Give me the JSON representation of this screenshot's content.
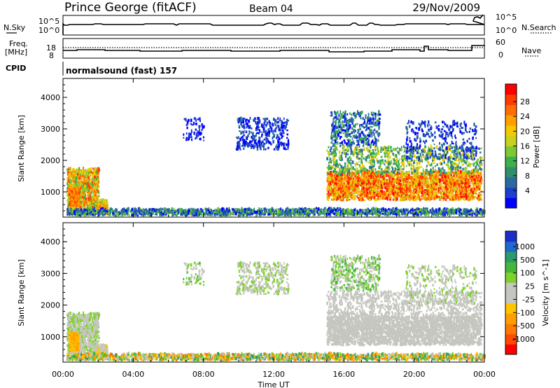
{
  "header": {
    "station": "Prince George (fitACF)",
    "beam": "Beam 04",
    "date": "29/Nov/2009"
  },
  "panel_nsky": {
    "left_label": "N.Sky",
    "left_ticks": [
      "10^5",
      "10^0"
    ],
    "right_label": "N.Search",
    "right_ticks": [
      "10^5",
      "10^0"
    ]
  },
  "panel_freq": {
    "left_label_1": "Freq.",
    "left_label_2": "[MHz]",
    "left_ticks": [
      "18",
      "8"
    ],
    "right_label": "Nave",
    "right_ticks": [
      "60",
      "0"
    ]
  },
  "cpid": {
    "label": "CPID",
    "program": "normalsound (fast) 157"
  },
  "colorbar_power": {
    "label": "Power [dB]",
    "ticks": [
      "28",
      "24",
      "20",
      "16",
      "12",
      "8",
      "4"
    ],
    "colors": [
      "#0000ff",
      "#1c3fcc",
      "#2a6aa0",
      "#2f8f6a",
      "#3cb04a",
      "#7ec832",
      "#c8d21e",
      "#f5c800",
      "#ffa000",
      "#ff6e00",
      "#ff3c00",
      "#ff0000"
    ]
  },
  "colorbar_velocity": {
    "label": "Velocity [m s^-1]",
    "ticks": [
      "1000",
      "500",
      "100",
      "25",
      "-25",
      "-100",
      "-500",
      "-1000"
    ],
    "colors": [
      "#1a2fc8",
      "#1f6ad0",
      "#2c9a6a",
      "#45b83a",
      "#7fd12e",
      "#c6c6c0",
      "#c6c6c0",
      "#ffc400",
      "#ffa000",
      "#ff7a00",
      "#ff4a00",
      "#ff0000"
    ]
  },
  "chart_data": [
    {
      "type": "heatmap",
      "title": "",
      "ylabel": "Slant Range [km]",
      "xlabel": "Time UT",
      "x_ticks": [
        "00:00",
        "04:00",
        "08:00",
        "12:00",
        "16:00",
        "20:00",
        "00:00"
      ],
      "y_ticks": [
        "1000",
        "2000",
        "3000",
        "4000"
      ],
      "ylim": [
        200,
        4600
      ],
      "xlim_hours": [
        0,
        24
      ],
      "quantity": "Power",
      "unit": "dB",
      "scale": [
        0,
        30
      ]
    },
    {
      "type": "heatmap",
      "title": "",
      "ylabel": "Slant Range [km]",
      "xlabel": "Time UT",
      "x_ticks": [
        "00:00",
        "04:00",
        "08:00",
        "12:00",
        "16:00",
        "20:00",
        "00:00"
      ],
      "y_ticks": [
        "1000",
        "2000",
        "3000",
        "4000"
      ],
      "ylim": [
        200,
        4600
      ],
      "xlim_hours": [
        0,
        24
      ],
      "quantity": "Velocity",
      "unit": "m s^-1",
      "scale": [
        -1000,
        1000
      ]
    }
  ],
  "x_axis": {
    "label": "Time UT",
    "ticks": [
      "00:00",
      "04:00",
      "08:00",
      "12:00",
      "16:00",
      "20:00",
      "00:00"
    ]
  },
  "y_axis": {
    "label": "Slant Range [km]",
    "ticks": [
      "1000",
      "2000",
      "3000",
      "4000"
    ]
  }
}
